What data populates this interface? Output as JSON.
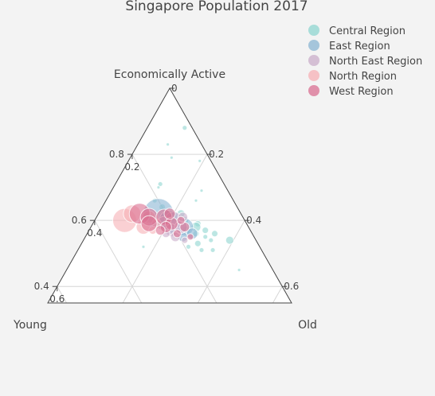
{
  "chart_data": {
    "type": "scatter",
    "subtype": "ternary-bubble",
    "title": "Singapore Population 2017",
    "axes": {
      "a": {
        "title": "Economically Active",
        "min": 0.35,
        "ticks": [
          0.4,
          0.6,
          0.8
        ],
        "tick_labels": [
          "0.4",
          "0.6",
          "0.8"
        ]
      },
      "b": {
        "title": "Young",
        "min": 0,
        "ticks": [
          0.2,
          0.4,
          0.6
        ],
        "tick_labels": [
          "0.2",
          "0.4",
          "0.6"
        ]
      },
      "c": {
        "title": "Old",
        "min": 0,
        "ticks": [
          0,
          0.2,
          0.4,
          0.6
        ],
        "tick_labels": [
          "0",
          "0.2",
          "0.4",
          "0.6"
        ]
      }
    },
    "grid": true,
    "legend_position": "top-right",
    "series": [
      {
        "name": "Central Region",
        "color": "#8fd6d0",
        "points": [
          {
            "a": 0.88,
            "b": 0.02,
            "c": 0.1,
            "size": 3
          },
          {
            "a": 0.83,
            "b": 0.09,
            "c": 0.08,
            "size": 2
          },
          {
            "a": 0.79,
            "b": 0.1,
            "c": 0.11,
            "size": 2
          },
          {
            "a": 0.78,
            "b": 0.03,
            "c": 0.19,
            "size": 2
          },
          {
            "a": 0.71,
            "b": 0.17,
            "c": 0.12,
            "size": 3
          },
          {
            "a": 0.7,
            "b": 0.18,
            "c": 0.12,
            "size": 2
          },
          {
            "a": 0.69,
            "b": 0.07,
            "c": 0.24,
            "size": 2
          },
          {
            "a": 0.66,
            "b": 0.21,
            "c": 0.13,
            "size": 3
          },
          {
            "a": 0.66,
            "b": 0.1,
            "c": 0.24,
            "size": 2
          },
          {
            "a": 0.64,
            "b": 0.2,
            "c": 0.16,
            "size": 4
          },
          {
            "a": 0.62,
            "b": 0.16,
            "c": 0.22,
            "size": 5
          },
          {
            "a": 0.61,
            "b": 0.19,
            "c": 0.2,
            "size": 6
          },
          {
            "a": 0.6,
            "b": 0.16,
            "c": 0.24,
            "size": 5
          },
          {
            "a": 0.59,
            "b": 0.13,
            "c": 0.28,
            "size": 4
          },
          {
            "a": 0.58,
            "b": 0.14,
            "c": 0.28,
            "size": 6
          },
          {
            "a": 0.57,
            "b": 0.17,
            "c": 0.26,
            "size": 5
          },
          {
            "a": 0.57,
            "b": 0.12,
            "c": 0.31,
            "size": 4
          },
          {
            "a": 0.56,
            "b": 0.1,
            "c": 0.34,
            "size": 4
          },
          {
            "a": 0.56,
            "b": 0.15,
            "c": 0.29,
            "size": 4
          },
          {
            "a": 0.55,
            "b": 0.13,
            "c": 0.32,
            "size": 3
          },
          {
            "a": 0.54,
            "b": 0.12,
            "c": 0.34,
            "size": 3
          },
          {
            "a": 0.54,
            "b": 0.07,
            "c": 0.39,
            "size": 5
          },
          {
            "a": 0.53,
            "b": 0.16,
            "c": 0.31,
            "size": 4
          },
          {
            "a": 0.52,
            "b": 0.19,
            "c": 0.29,
            "size": 3
          },
          {
            "a": 0.51,
            "b": 0.16,
            "c": 0.33,
            "size": 3
          },
          {
            "a": 0.51,
            "b": 0.13,
            "c": 0.36,
            "size": 3
          },
          {
            "a": 0.52,
            "b": 0.31,
            "c": 0.17,
            "size": 2
          },
          {
            "a": 0.45,
            "b": 0.09,
            "c": 0.46,
            "size": 2
          }
        ]
      },
      {
        "name": "East Region",
        "color": "#8bb5d3",
        "points": [
          {
            "a": 0.62,
            "b": 0.22,
            "c": 0.16,
            "size": 19
          },
          {
            "a": 0.6,
            "b": 0.2,
            "c": 0.2,
            "size": 13
          },
          {
            "a": 0.58,
            "b": 0.17,
            "c": 0.25,
            "size": 11
          },
          {
            "a": 0.56,
            "b": 0.16,
            "c": 0.28,
            "size": 7
          },
          {
            "a": 0.55,
            "b": 0.19,
            "c": 0.26,
            "size": 6
          },
          {
            "a": 0.57,
            "b": 0.21,
            "c": 0.22,
            "size": 5
          }
        ]
      },
      {
        "name": "North East Region",
        "color": "#c9aec9",
        "points": [
          {
            "a": 0.6,
            "b": 0.19,
            "c": 0.21,
            "size": 11
          },
          {
            "a": 0.59,
            "b": 0.22,
            "c": 0.19,
            "size": 9
          },
          {
            "a": 0.57,
            "b": 0.21,
            "c": 0.22,
            "size": 8
          },
          {
            "a": 0.58,
            "b": 0.18,
            "c": 0.24,
            "size": 8
          },
          {
            "a": 0.61,
            "b": 0.16,
            "c": 0.23,
            "size": 6
          },
          {
            "a": 0.55,
            "b": 0.21,
            "c": 0.24,
            "size": 6
          },
          {
            "a": 0.56,
            "b": 0.23,
            "c": 0.21,
            "size": 5
          },
          {
            "a": 0.54,
            "b": 0.19,
            "c": 0.27,
            "size": 4
          }
        ]
      },
      {
        "name": "North Region",
        "color": "#f7b0b5",
        "points": [
          {
            "a": 0.6,
            "b": 0.32,
            "c": 0.08,
            "size": 15
          },
          {
            "a": 0.62,
            "b": 0.29,
            "c": 0.09,
            "size": 11
          },
          {
            "a": 0.58,
            "b": 0.28,
            "c": 0.14,
            "size": 9
          },
          {
            "a": 0.61,
            "b": 0.25,
            "c": 0.14,
            "size": 8
          },
          {
            "a": 0.59,
            "b": 0.24,
            "c": 0.17,
            "size": 6
          },
          {
            "a": 0.57,
            "b": 0.26,
            "c": 0.17,
            "size": 5
          }
        ]
      },
      {
        "name": "West Region",
        "color": "#da6f91",
        "points": [
          {
            "a": 0.62,
            "b": 0.27,
            "c": 0.11,
            "size": 13
          },
          {
            "a": 0.61,
            "b": 0.25,
            "c": 0.14,
            "size": 11
          },
          {
            "a": 0.59,
            "b": 0.26,
            "c": 0.15,
            "size": 10
          },
          {
            "a": 0.61,
            "b": 0.21,
            "c": 0.18,
            "size": 10
          },
          {
            "a": 0.59,
            "b": 0.2,
            "c": 0.21,
            "size": 8
          },
          {
            "a": 0.58,
            "b": 0.22,
            "c": 0.2,
            "size": 7
          },
          {
            "a": 0.62,
            "b": 0.19,
            "c": 0.19,
            "size": 7
          },
          {
            "a": 0.58,
            "b": 0.17,
            "c": 0.25,
            "size": 6
          },
          {
            "a": 0.57,
            "b": 0.24,
            "c": 0.19,
            "size": 6
          },
          {
            "a": 0.6,
            "b": 0.17,
            "c": 0.23,
            "size": 5
          },
          {
            "a": 0.56,
            "b": 0.2,
            "c": 0.24,
            "size": 5
          },
          {
            "a": 0.55,
            "b": 0.17,
            "c": 0.28,
            "size": 4
          }
        ]
      }
    ]
  }
}
